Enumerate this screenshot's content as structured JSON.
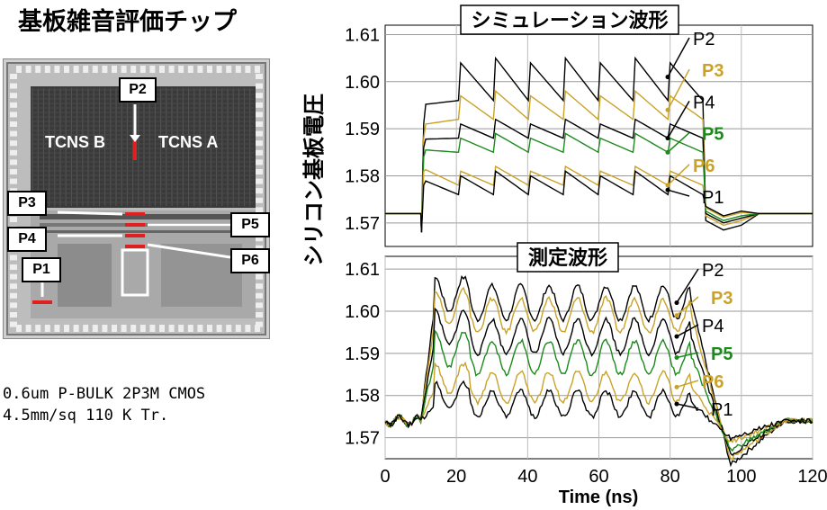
{
  "figure_title": "基板雑音評価チップ",
  "chip": {
    "blocks": [
      "TCNS B",
      "TCNS A"
    ],
    "probes": [
      "P2",
      "P3",
      "P4",
      "P5",
      "P6",
      "P1"
    ]
  },
  "description": [
    "0.6um P-BULK 2P3M CMOS",
    "4.5mm/sq 110 K Tr."
  ],
  "colors": {
    "black": "#000000",
    "gold": "#c9a227",
    "green": "#1a8a1a",
    "red": "#e02020"
  },
  "chart_data": [
    {
      "type": "line",
      "title": "シミュレーション波形",
      "xlim": [
        0,
        120
      ],
      "ylim": [
        1.565,
        1.612
      ],
      "yticks": [
        "1.57",
        "1.58",
        "1.59",
        "1.60",
        "1.61"
      ],
      "ylabel": "シリコン基板電圧",
      "series": [
        {
          "name": "P2",
          "color": "black",
          "base": 1.572,
          "rise": 1.591,
          "peak": 1.605,
          "trough": 1.596,
          "min": 1.5685
        },
        {
          "name": "P3",
          "color": "gold",
          "base": 1.572,
          "rise": 1.588,
          "peak": 1.598,
          "trough": 1.592,
          "min": 1.5695
        },
        {
          "name": "P4",
          "color": "black",
          "base": 1.572,
          "rise": 1.586,
          "peak": 1.592,
          "trough": 1.588,
          "min": 1.57
        },
        {
          "name": "P5",
          "color": "green",
          "base": 1.572,
          "rise": 1.584,
          "peak": 1.589,
          "trough": 1.585,
          "min": 1.5705
        },
        {
          "name": "P6",
          "color": "gold",
          "base": 1.572,
          "rise": 1.581,
          "peak": 1.582,
          "trough": 1.578,
          "min": 1.5712
        },
        {
          "name": "P1",
          "color": "black",
          "base": 1.572,
          "rise": 1.578,
          "peak": 1.581,
          "trough": 1.576,
          "min": 1.5715
        }
      ]
    },
    {
      "type": "line",
      "title": "測定波形",
      "xlim": [
        0,
        120
      ],
      "ylim": [
        1.565,
        1.613
      ],
      "yticks": [
        "1.57",
        "1.58",
        "1.59",
        "1.60",
        "1.61"
      ],
      "xticks": [
        "0",
        "20",
        "40",
        "60",
        "80",
        "100",
        "120"
      ],
      "xlabel": "Time (ns)",
      "series": [
        {
          "name": "P2",
          "color": "black",
          "base": 1.574,
          "mid": 1.602,
          "amp": 0.004,
          "min": 1.5635
        },
        {
          "name": "P3",
          "color": "gold",
          "base": 1.574,
          "mid": 1.599,
          "amp": 0.004,
          "min": 1.565
        },
        {
          "name": "P4",
          "color": "black",
          "base": 1.574,
          "mid": 1.594,
          "amp": 0.004,
          "min": 1.566
        },
        {
          "name": "P5",
          "color": "green",
          "base": 1.574,
          "mid": 1.589,
          "amp": 0.004,
          "min": 1.567
        },
        {
          "name": "P6",
          "color": "gold",
          "base": 1.574,
          "mid": 1.582,
          "amp": 0.0035,
          "min": 1.569
        },
        {
          "name": "P1",
          "color": "black",
          "base": 1.574,
          "mid": 1.578,
          "amp": 0.003,
          "min": 1.57
        }
      ]
    }
  ]
}
